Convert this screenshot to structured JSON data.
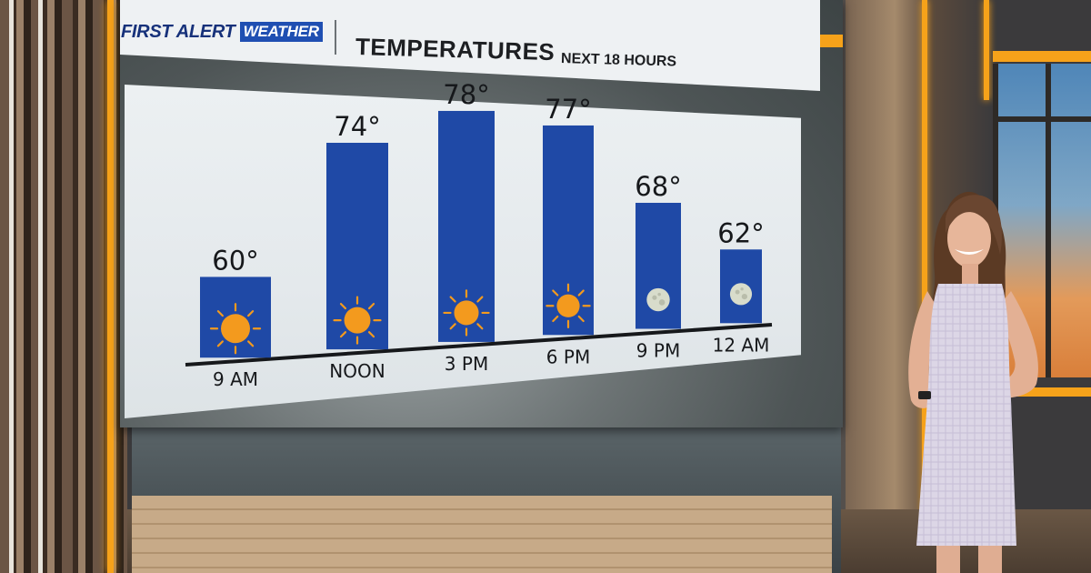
{
  "header": {
    "logo_prefix": "FIRST ALERT",
    "logo_badge": "WEATHER",
    "title": "TEMPERATURES",
    "subtitle": "NEXT 18 HOURS"
  },
  "colors": {
    "bar": "#1f49a6",
    "bar_dark": "#163a8c",
    "accent": "#f6a21a",
    "sun": "#f39a1e",
    "moon": "#d8dccb"
  },
  "chart_data": {
    "type": "bar",
    "categories": [
      "9 AM",
      "NOON",
      "3 PM",
      "6 PM",
      "9 PM",
      "12 AM"
    ],
    "values": [
      60,
      74,
      78,
      77,
      68,
      62
    ],
    "value_labels": [
      "60°",
      "74°",
      "78°",
      "77°",
      "68°",
      "62°"
    ],
    "icons": [
      "sun-icon",
      "sun-icon",
      "sun-icon",
      "sun-icon",
      "moon-icon",
      "moon-icon"
    ],
    "title": "TEMPERATURES",
    "subtitle": "NEXT 18 HOURS",
    "xlabel": "",
    "ylabel": "",
    "grid": false,
    "legend": "none"
  }
}
